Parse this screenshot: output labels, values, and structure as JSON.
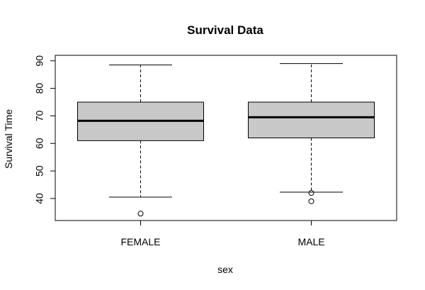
{
  "chart_data": {
    "type": "boxplot",
    "title": "Survival Data",
    "xlabel": "sex",
    "ylabel": "Survival Time",
    "categories": [
      "FEMALE",
      "MALE"
    ],
    "yticks": [
      40,
      50,
      60,
      70,
      80,
      90
    ],
    "ylim": [
      32,
      92
    ],
    "box_color": "#c8c8c8",
    "grid": false,
    "boxes": [
      {
        "category": "FEMALE",
        "whisker_low": 40.5,
        "q1": 61,
        "median": 68.2,
        "q3": 75,
        "whisker_high": 88.5,
        "outliers": [
          34.5
        ]
      },
      {
        "category": "MALE",
        "whisker_low": 42.3,
        "q1": 62,
        "median": 69.5,
        "q3": 75,
        "whisker_high": 89,
        "outliers": [
          42,
          39
        ]
      }
    ]
  }
}
